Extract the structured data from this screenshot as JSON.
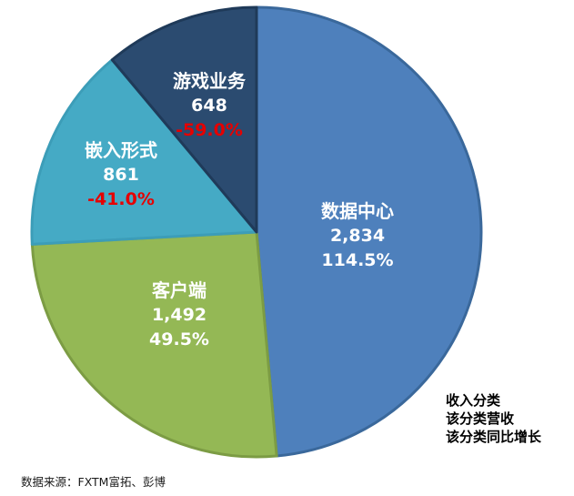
{
  "chart_data": {
    "type": "pie",
    "title": "",
    "direction": "clockwise",
    "start_angle_deg": 0,
    "total": 5835,
    "slices": [
      {
        "label": "数据中心",
        "value": 2834,
        "value_text": "2,834",
        "growth_text": "114.5%",
        "color": "#4E80BC",
        "edge_color": "#3A689B"
      },
      {
        "label": "客户端",
        "value": 1492,
        "value_text": "1,492",
        "growth_text": "49.5%",
        "color": "#94B855",
        "edge_color": "#7C9C44"
      },
      {
        "label": "嵌入形式",
        "value": 861,
        "value_text": "861",
        "growth_text": "-41.0%",
        "color": "#45AAC5",
        "edge_color": "#3C9DB8"
      },
      {
        "label": "游戏业务",
        "value": 648,
        "value_text": "648",
        "growth_text": "-59.0%",
        "color": "#2B4B70",
        "edge_color": "#1F3A59"
      }
    ],
    "label_colors": {
      "text": "#FFFFFF",
      "negative_growth": "#E60000"
    },
    "legend_position": "bottom-right",
    "legend_note": [
      "收入分类",
      "该分类营收",
      "该分类同比增长"
    ]
  },
  "footer": {
    "source": "数据来源：FXTM富拓、彭博"
  }
}
